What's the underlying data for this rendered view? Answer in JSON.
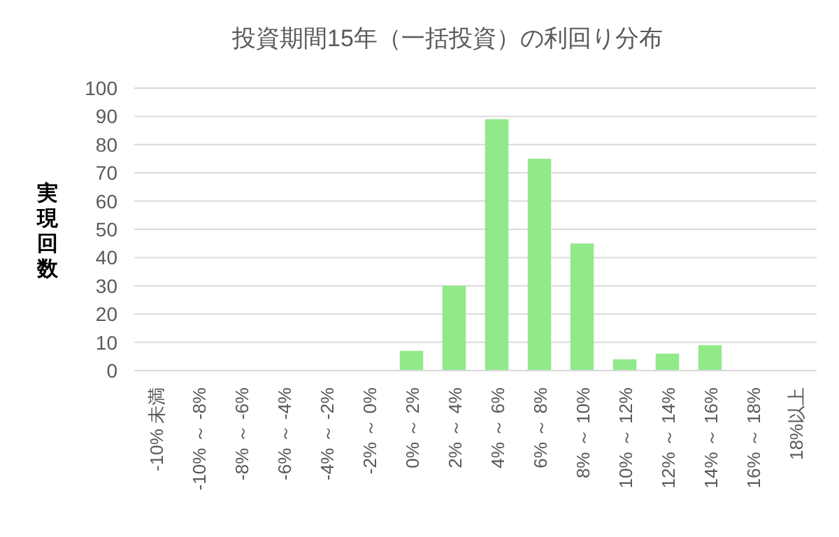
{
  "chart_data": {
    "type": "bar",
    "title": "投資期間15年（一括投資）の利回り分布",
    "ylabel": "実現回数",
    "categories": [
      "-10% 未満",
      "-10% ～ -8%",
      "-8% ～ -6%",
      "-6% ～ -4%",
      "-4% ～ -2%",
      "-2% ～ 0%",
      "0% ～ 2%",
      "2% ～ 4%",
      "4% ～ 6%",
      "6% ～ 8%",
      "8% ～ 10%",
      "10% ～ 12%",
      "12% ～ 14%",
      "14% ～ 16%",
      "16% ～ 18%",
      "18%以上"
    ],
    "values": [
      0,
      0,
      0,
      0,
      0,
      0,
      7,
      30,
      89,
      75,
      45,
      4,
      6,
      9,
      0,
      0
    ],
    "color": "#92e98a",
    "ylim": [
      0,
      100
    ],
    "yticks": [
      0,
      10,
      20,
      30,
      40,
      50,
      60,
      70,
      80,
      90,
      100
    ],
    "grid": "y"
  }
}
